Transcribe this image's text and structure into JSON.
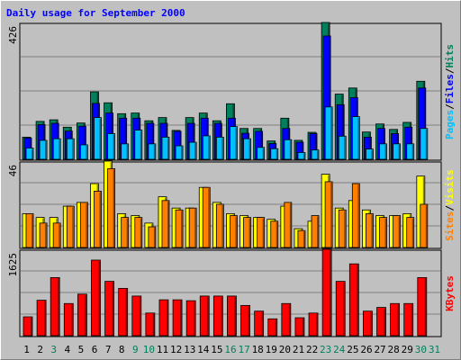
{
  "title": "Daily usage for September 2000",
  "colors": {
    "hits": "#00805c",
    "files": "#0000ff",
    "pages": "#00c0ff",
    "visits": "#ffff00",
    "sites": "#ff8000",
    "kbytes": "#ff0000",
    "day_weekday": "#000000",
    "day_weekend": "#00805c",
    "panel": "#c0c0c0",
    "gridline": "#808080"
  },
  "chart_data": [
    {
      "type": "bar",
      "panel": "hits-files-pages",
      "categories": [
        "1",
        "2",
        "3",
        "4",
        "5",
        "6",
        "7",
        "8",
        "9",
        "10",
        "11",
        "12",
        "13",
        "14",
        "15",
        "16",
        "17",
        "18",
        "19",
        "20",
        "21",
        "22",
        "23",
        "24",
        "25",
        "26",
        "27",
        "28",
        "29",
        "30",
        "31"
      ],
      "ylim": [
        0,
        426
      ],
      "max_label": "426",
      "series_labels": {
        "pages": "Pages",
        "files": "Files",
        "hits": "Hits",
        "separator": "/"
      },
      "series": [
        {
          "name": "Hits",
          "key": "hits",
          "values": [
            69,
            118,
            123,
            100,
            113,
            210,
            176,
            142,
            144,
            120,
            130,
            90,
            130,
            144,
            120,
            173,
            96,
            96,
            57,
            128,
            59,
            84,
            426,
            203,
            222,
            85,
            110,
            93,
            115,
            243,
            0
          ]
        },
        {
          "name": "Files",
          "key": "files",
          "values": [
            66,
            108,
            112,
            88,
            103,
            174,
            144,
            128,
            128,
            112,
            112,
            87,
            112,
            128,
            112,
            128,
            81,
            87,
            49,
            96,
            53,
            80,
            384,
            170,
            192,
            69,
            96,
            80,
            100,
            222,
            0
          ]
        },
        {
          "name": "Pages",
          "key": "pages",
          "values": [
            35,
            59,
            64,
            64,
            45,
            130,
            80,
            48,
            91,
            48,
            69,
            42,
            53,
            73,
            69,
            102,
            64,
            37,
            33,
            61,
            21,
            29,
            163,
            72,
            133,
            32,
            48,
            48,
            48,
            96,
            0
          ]
        }
      ]
    },
    {
      "type": "bar",
      "panel": "visits-sites",
      "categories": [
        "1",
        "2",
        "3",
        "4",
        "5",
        "6",
        "7",
        "8",
        "9",
        "10",
        "11",
        "12",
        "13",
        "14",
        "15",
        "16",
        "17",
        "18",
        "19",
        "20",
        "21",
        "22",
        "23",
        "24",
        "25",
        "26",
        "27",
        "28",
        "29",
        "30",
        "31"
      ],
      "ylim": [
        0,
        46
      ],
      "max_label": "46",
      "series_labels": {
        "sites": "Sites",
        "visits": "Visits",
        "separator": "/"
      },
      "series": [
        {
          "name": "Visits",
          "key": "visits",
          "values": [
            18,
            16,
            16,
            22,
            24,
            34,
            46,
            18,
            17,
            13,
            27,
            21,
            21,
            32,
            24,
            18,
            17,
            16,
            15,
            22,
            10,
            14,
            39,
            21,
            25,
            20,
            17,
            17,
            18,
            38,
            0
          ]
        },
        {
          "name": "Sites",
          "key": "sites",
          "values": [
            18,
            13,
            13,
            22,
            24,
            30,
            42,
            16,
            16,
            11,
            25,
            20,
            21,
            32,
            23,
            17,
            16,
            16,
            14,
            24,
            9,
            17,
            35,
            20,
            34,
            18,
            16,
            17,
            16,
            23,
            0
          ]
        }
      ]
    },
    {
      "type": "bar",
      "panel": "kbytes",
      "categories": [
        "1",
        "2",
        "3",
        "4",
        "5",
        "6",
        "7",
        "8",
        "9",
        "10",
        "11",
        "12",
        "13",
        "14",
        "15",
        "16",
        "17",
        "18",
        "19",
        "20",
        "21",
        "22",
        "23",
        "24",
        "25",
        "26",
        "27",
        "28",
        "29",
        "30",
        "31"
      ],
      "ylim": [
        0,
        1625
      ],
      "max_label": "1625",
      "series_labels": {
        "kbytes": "KBytes"
      },
      "series": [
        {
          "name": "KBytes",
          "key": "kbytes",
          "values": [
            355,
            667,
            1093,
            605,
            782,
            1422,
            1022,
            890,
            746,
            426,
            675,
            675,
            658,
            746,
            746,
            746,
            569,
            462,
            317,
            605,
            338,
            426,
            1625,
            1022,
            1351,
            462,
            532,
            605,
            605,
            1093,
            0
          ]
        }
      ]
    }
  ],
  "day_labels": [
    {
      "label": "1",
      "weekend": false
    },
    {
      "label": "2",
      "weekend": false
    },
    {
      "label": "3",
      "weekend": true
    },
    {
      "label": "4",
      "weekend": false
    },
    {
      "label": "5",
      "weekend": false
    },
    {
      "label": "6",
      "weekend": false
    },
    {
      "label": "7",
      "weekend": false
    },
    {
      "label": "8",
      "weekend": false
    },
    {
      "label": "9",
      "weekend": true
    },
    {
      "label": "10",
      "weekend": true
    },
    {
      "label": "11",
      "weekend": false
    },
    {
      "label": "12",
      "weekend": false
    },
    {
      "label": "13",
      "weekend": false
    },
    {
      "label": "14",
      "weekend": false
    },
    {
      "label": "15",
      "weekend": false
    },
    {
      "label": "16",
      "weekend": true
    },
    {
      "label": "17",
      "weekend": true
    },
    {
      "label": "18",
      "weekend": false
    },
    {
      "label": "19",
      "weekend": false
    },
    {
      "label": "20",
      "weekend": false
    },
    {
      "label": "21",
      "weekend": false
    },
    {
      "label": "22",
      "weekend": false
    },
    {
      "label": "23",
      "weekend": true
    },
    {
      "label": "24",
      "weekend": true
    },
    {
      "label": "25",
      "weekend": false
    },
    {
      "label": "26",
      "weekend": false
    },
    {
      "label": "27",
      "weekend": false
    },
    {
      "label": "28",
      "weekend": false
    },
    {
      "label": "29",
      "weekend": false
    },
    {
      "label": "30",
      "weekend": true
    },
    {
      "label": "31",
      "weekend": true
    }
  ]
}
